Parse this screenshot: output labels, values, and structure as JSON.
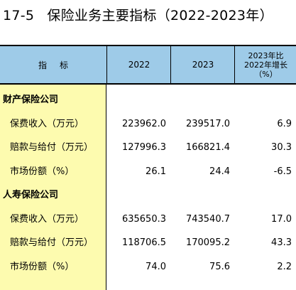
{
  "title": {
    "number": "17-5",
    "text": "保险业务主要指标（2022-2023年）"
  },
  "header": {
    "indicator": "指标",
    "year1": "2022",
    "year2": "2023",
    "growth_line1": "2023年比",
    "growth_line2": "2022年增长",
    "growth_line3": "（%）"
  },
  "rows": [
    {
      "label": "财产保险公司",
      "section": true,
      "v2022": "",
      "v2023": "",
      "growth": ""
    },
    {
      "label": "保费收入（万元）",
      "section": false,
      "v2022": "223962.0",
      "v2023": "239517.0",
      "growth": "6.9"
    },
    {
      "label": "赔款与给付（万元）",
      "section": false,
      "v2022": "127996.3",
      "v2023": "166821.4",
      "growth": "30.3"
    },
    {
      "label": "市场份额（%）",
      "section": false,
      "v2022": "26.1",
      "v2023": "24.4",
      "growth": "-6.5"
    },
    {
      "label": "人寿保险公司",
      "section": true,
      "v2022": "",
      "v2023": "",
      "growth": ""
    },
    {
      "label": "保费收入（万元）",
      "section": false,
      "v2022": "635650.3",
      "v2023": "743540.7",
      "growth": "17.0"
    },
    {
      "label": "赔款与给付（万元）",
      "section": false,
      "v2022": "118706.5",
      "v2023": "170095.2",
      "growth": "43.3"
    },
    {
      "label": "市场份额（%）",
      "section": false,
      "v2022": "74.0",
      "v2023": "75.6",
      "growth": "2.2"
    }
  ],
  "colors": {
    "header_bg": "#9ecbe8",
    "stub_bg": "#fdfbaf"
  }
}
